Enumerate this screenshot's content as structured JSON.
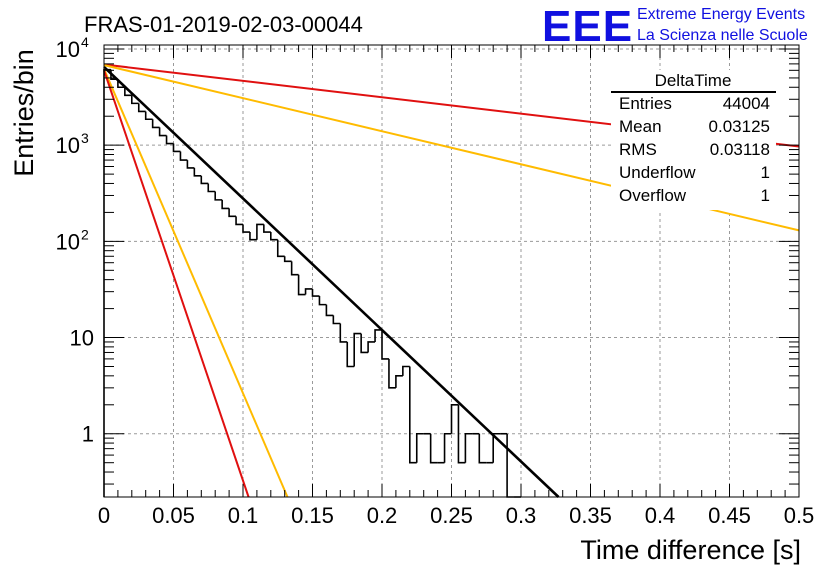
{
  "branding": {
    "logo": "EEE",
    "line1": "Extreme Energy Events",
    "line2": "La Scienza nelle Scuole",
    "color": "#1010e0"
  },
  "chart_data": {
    "type": "bar",
    "title": "FRAS-01-2019-02-03-00044",
    "xlabel": "Time difference [s]",
    "ylabel": "Entries/bin",
    "xlim": [
      0,
      0.5
    ],
    "ylim": [
      0.22,
      11000
    ],
    "yscale": "log",
    "grid": true,
    "x_ticks": [
      "0",
      "0.05",
      "0.1",
      "0.15",
      "0.2",
      "0.25",
      "0.3",
      "0.35",
      "0.4",
      "0.45",
      "0.5"
    ],
    "y_ticks": [
      {
        "value": 10000,
        "base": "10",
        "exp": "4"
      },
      {
        "value": 1000,
        "base": "10",
        "exp": "3"
      },
      {
        "value": 100,
        "base": "10",
        "exp": "2"
      },
      {
        "value": 10,
        "base": "10",
        "exp": ""
      },
      {
        "value": 1,
        "base": "1",
        "exp": ""
      }
    ],
    "histogram": {
      "name": "DeltaTime",
      "bin_width": 0.005,
      "x_start": 0,
      "counts": [
        6100,
        4850,
        4000,
        3300,
        2720,
        2240,
        1860,
        1530,
        1260,
        1040,
        860,
        700,
        580,
        480,
        400,
        330,
        270,
        220,
        182,
        150,
        125,
        104,
        150,
        125,
        104,
        70,
        62,
        45,
        28,
        32,
        27,
        22,
        17,
        14,
        9,
        5,
        11,
        7,
        9,
        12,
        6,
        3,
        4,
        5,
        0.5,
        1,
        1,
        0.5,
        0.5,
        1,
        2,
        0.5,
        1,
        1,
        0.5,
        0.5,
        1,
        1,
        0,
        0
      ]
    },
    "fits": [
      {
        "color": "#000000",
        "width": 2.6,
        "points": [
          [
            0,
            6500
          ],
          [
            0.327,
            0.22
          ]
        ]
      },
      {
        "color": "#e01010",
        "width": 2,
        "points": [
          [
            0,
            6900
          ],
          [
            0.5,
            970
          ]
        ]
      },
      {
        "color": "#ffbb00",
        "width": 2,
        "points": [
          [
            0,
            6800
          ],
          [
            0.5,
            130
          ]
        ]
      },
      {
        "color": "#ffbb00",
        "width": 2,
        "points": [
          [
            0,
            6200
          ],
          [
            0.132,
            0.22
          ]
        ]
      },
      {
        "color": "#e01010",
        "width": 2,
        "points": [
          [
            0,
            6000
          ],
          [
            0.104,
            0.22
          ]
        ]
      }
    ],
    "stats": {
      "title": "DeltaTime",
      "rows": [
        {
          "label": "Entries",
          "value": "44004"
        },
        {
          "label": "Mean",
          "value": "0.03125"
        },
        {
          "label": "RMS",
          "value": "0.03118"
        },
        {
          "label": "Underflow",
          "value": "1"
        },
        {
          "label": "Overflow",
          "value": "1"
        }
      ]
    }
  }
}
